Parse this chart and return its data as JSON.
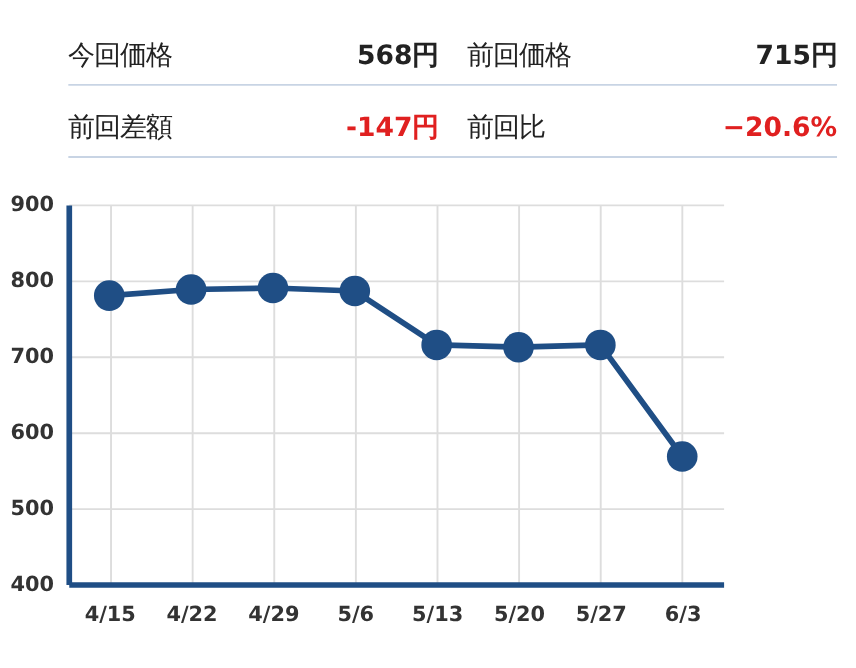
{
  "chart_data": [
    {
      "type": "other",
      "annotations": [
        "今回価格",
        "568円",
        "前回価格",
        "715円",
        "前回差額",
        "-147円",
        "前回比",
        "−20.6%"
      ]
    },
    {
      "type": "line",
      "categories": [
        "4/15",
        "4/22",
        "4/29",
        "5/6",
        "5/13",
        "5/20",
        "5/27",
        "6/3"
      ],
      "series": [
        {
          "color": "#1f4e85",
          "values": [
            780,
            788,
            790,
            786,
            715,
            712,
            715,
            568
          ]
        }
      ],
      "ylim": [
        400,
        900
      ],
      "yticks": [
        400,
        500,
        600,
        700,
        800,
        900
      ],
      "grid": true,
      "marker": "circle",
      "line_style": "solid"
    }
  ]
}
